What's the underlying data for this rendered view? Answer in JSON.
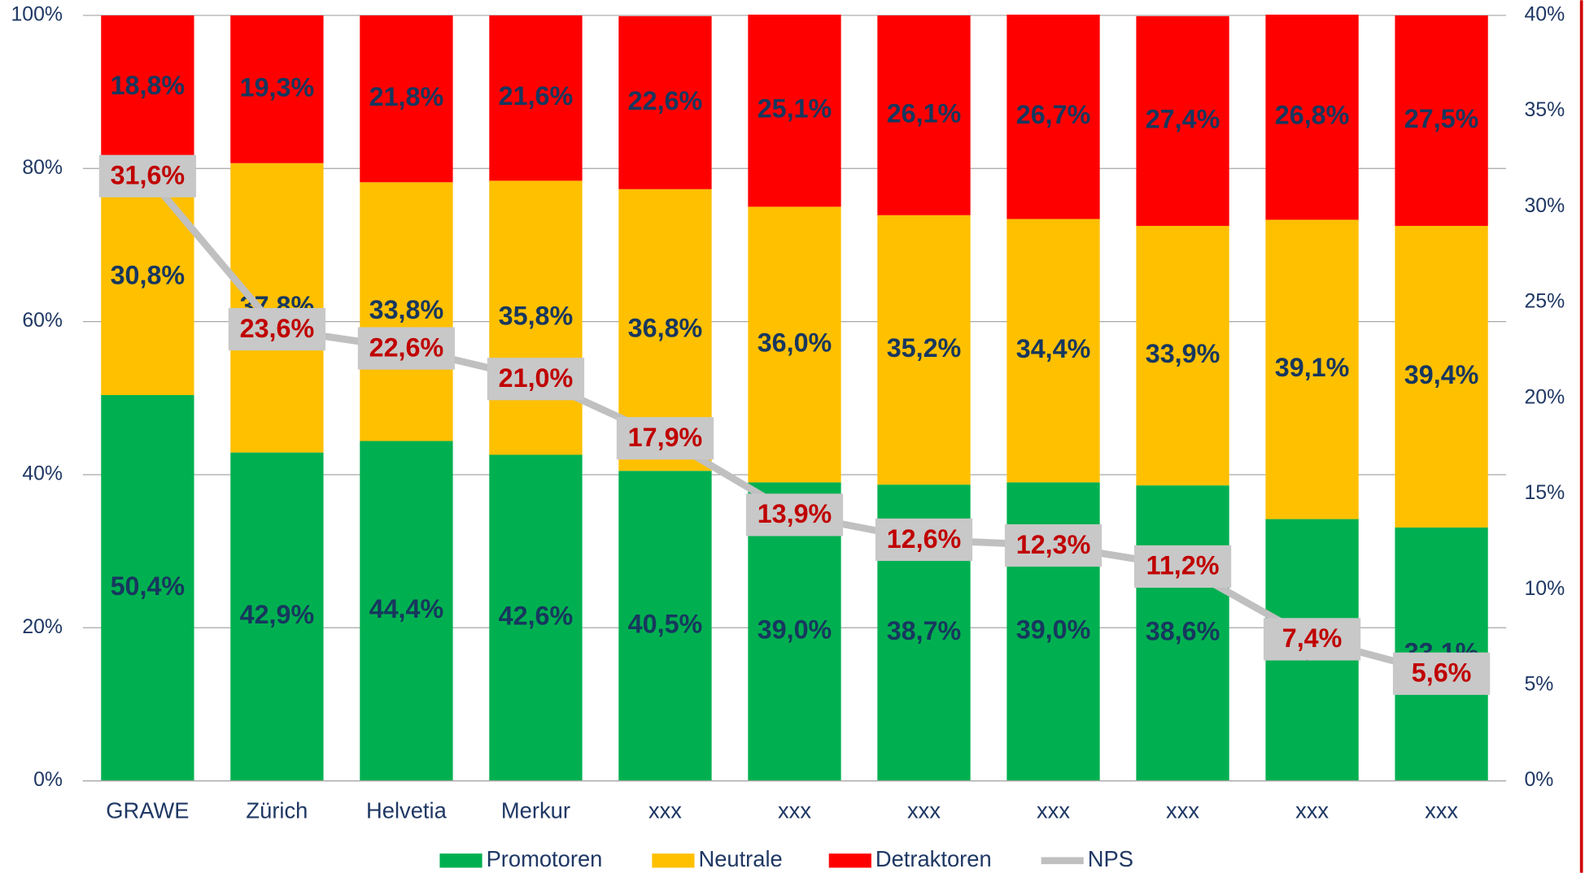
{
  "chart_data": {
    "type": "bar",
    "stacked": true,
    "categories": [
      "GRAWE",
      "Zürich",
      "Helvetia",
      "Merkur",
      "xxx",
      "xxx",
      "xxx",
      "xxx",
      "xxx",
      "xxx",
      "xxx"
    ],
    "series": [
      {
        "name": "Promotoren",
        "color": "#00b050",
        "values": [
          50.4,
          42.9,
          44.4,
          42.6,
          40.5,
          39.0,
          38.7,
          39.0,
          38.6,
          34.2,
          33.1
        ],
        "value_labels": [
          "50,4%",
          "42,9%",
          "44,4%",
          "42,6%",
          "40,5%",
          "39,0%",
          "38,7%",
          "39,0%",
          "38,6%",
          "34,2%",
          "33,1%"
        ]
      },
      {
        "name": "Neutrale",
        "color": "#ffc000",
        "values": [
          30.8,
          37.8,
          33.8,
          35.8,
          36.8,
          36.0,
          35.2,
          34.4,
          33.9,
          39.1,
          39.4
        ],
        "value_labels": [
          "30,8%",
          "37,8%",
          "33,8%",
          "35,8%",
          "36,8%",
          "36,0%",
          "35,2%",
          "34,4%",
          "33,9%",
          "39,1%",
          "39,4%"
        ]
      },
      {
        "name": "Detraktoren",
        "color": "#ff0000",
        "values": [
          18.8,
          19.3,
          21.8,
          21.6,
          22.6,
          25.1,
          26.1,
          26.7,
          27.4,
          26.8,
          27.5
        ],
        "value_labels": [
          "18,8%",
          "19,3%",
          "21,8%",
          "21,6%",
          "22,6%",
          "25,1%",
          "26,1%",
          "26,7%",
          "27,4%",
          "26,8%",
          "27,5%"
        ]
      },
      {
        "name": "NPS",
        "type": "line",
        "axis": "y2",
        "color": "#c0c0c0",
        "values": [
          31.6,
          23.6,
          22.6,
          21.0,
          17.9,
          13.9,
          12.6,
          12.3,
          11.2,
          7.4,
          5.6
        ],
        "value_labels": [
          "31,6%",
          "23,6%",
          "22,6%",
          "21,0%",
          "17,9%",
          "13,9%",
          "12,6%",
          "12,3%",
          "11,2%",
          "7,4%",
          "5,6%"
        ]
      }
    ],
    "ylim": [
      0,
      100
    ],
    "yticks": [
      {
        "value": 0,
        "label": "0%"
      },
      {
        "value": 20,
        "label": "20%"
      },
      {
        "value": 40,
        "label": "40%"
      },
      {
        "value": 60,
        "label": "60%"
      },
      {
        "value": 80,
        "label": "80%"
      },
      {
        "value": 100,
        "label": "100%"
      }
    ],
    "y2lim": [
      0,
      40
    ],
    "y2ticks": [
      {
        "value": 0,
        "label": "0%"
      },
      {
        "value": 5,
        "label": "5%"
      },
      {
        "value": 10,
        "label": "10%"
      },
      {
        "value": 15,
        "label": "15%"
      },
      {
        "value": 20,
        "label": "20%"
      },
      {
        "value": 25,
        "label": "25%"
      },
      {
        "value": 30,
        "label": "30%"
      },
      {
        "value": 35,
        "label": "35%"
      },
      {
        "value": 40,
        "label": "40%"
      }
    ],
    "grid": true,
    "legend": "bottom"
  }
}
